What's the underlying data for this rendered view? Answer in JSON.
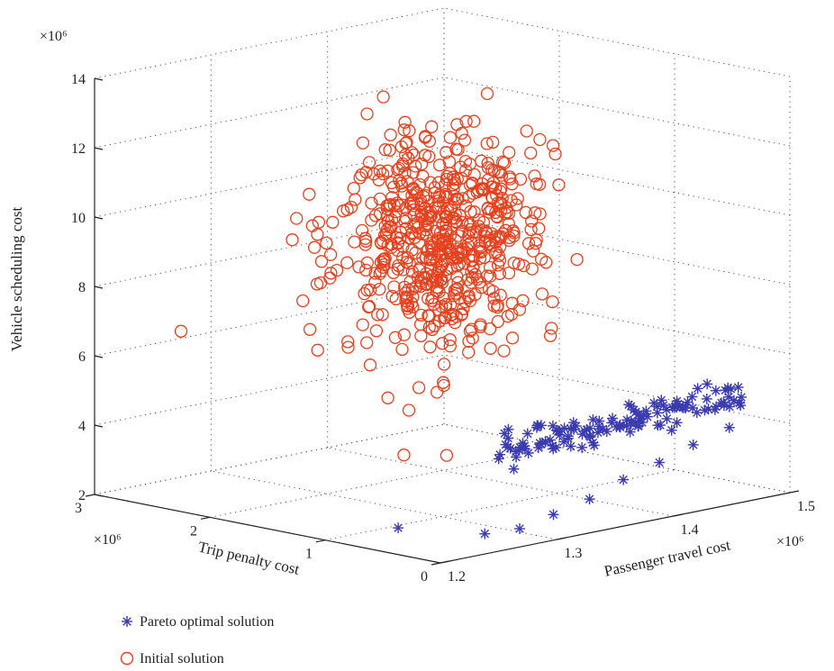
{
  "chart_data": {
    "type": "scatter",
    "dimensions": 3,
    "xlabel": "Passenger travel cost",
    "ylabel": "Trip penalty cost",
    "zlabel": "Vehicle scheduling cost",
    "x_multiplier": "×10⁶",
    "y_multiplier": "×10⁶",
    "z_multiplier": "×10⁶",
    "xlim": [
      1.2,
      1.5
    ],
    "ylim": [
      0,
      3
    ],
    "zlim": [
      2,
      14
    ],
    "xticks": [
      "1.2",
      "1.3",
      "1.4",
      "1.5"
    ],
    "yticks": [
      "0",
      "1",
      "2",
      "3"
    ],
    "zticks": [
      "2",
      "4",
      "6",
      "8",
      "10",
      "12",
      "14"
    ],
    "grid": true,
    "legend_placement": "bottom-left",
    "series": [
      {
        "name": "Pareto optimal solution",
        "marker": "asterisk",
        "color": "#3b3bb0",
        "points": [
          [
            1.235,
            0.72,
            2.3
          ],
          [
            1.248,
            0.1,
            2.45
          ],
          [
            1.27,
            0.02,
            2.5
          ],
          [
            1.3,
            0.03,
            2.7
          ],
          [
            1.33,
            0.02,
            2.95
          ],
          [
            1.36,
            0.03,
            3.3
          ],
          [
            1.39,
            0.02,
            3.6
          ],
          [
            1.42,
            0.03,
            3.9
          ],
          [
            1.45,
            0.02,
            4.2
          ]
        ]
      },
      {
        "name": "Initial solution",
        "marker": "circle",
        "color": "#e8401c",
        "points": [
          [
            1.2,
            2.25,
            7.2
          ],
          [
            1.23,
            0.62,
            4.5
          ],
          [
            1.24,
            0.35,
            4.6
          ],
          [
            1.27,
            0.95,
            8.8
          ]
        ]
      }
    ]
  },
  "legend": {
    "pareto_label": "Pareto optimal solution",
    "initial_label": "Initial solution"
  },
  "colors": {
    "pareto": "#3b3bb0",
    "initial": "#e8401c",
    "grid": "#555555",
    "axis": "#222222"
  }
}
